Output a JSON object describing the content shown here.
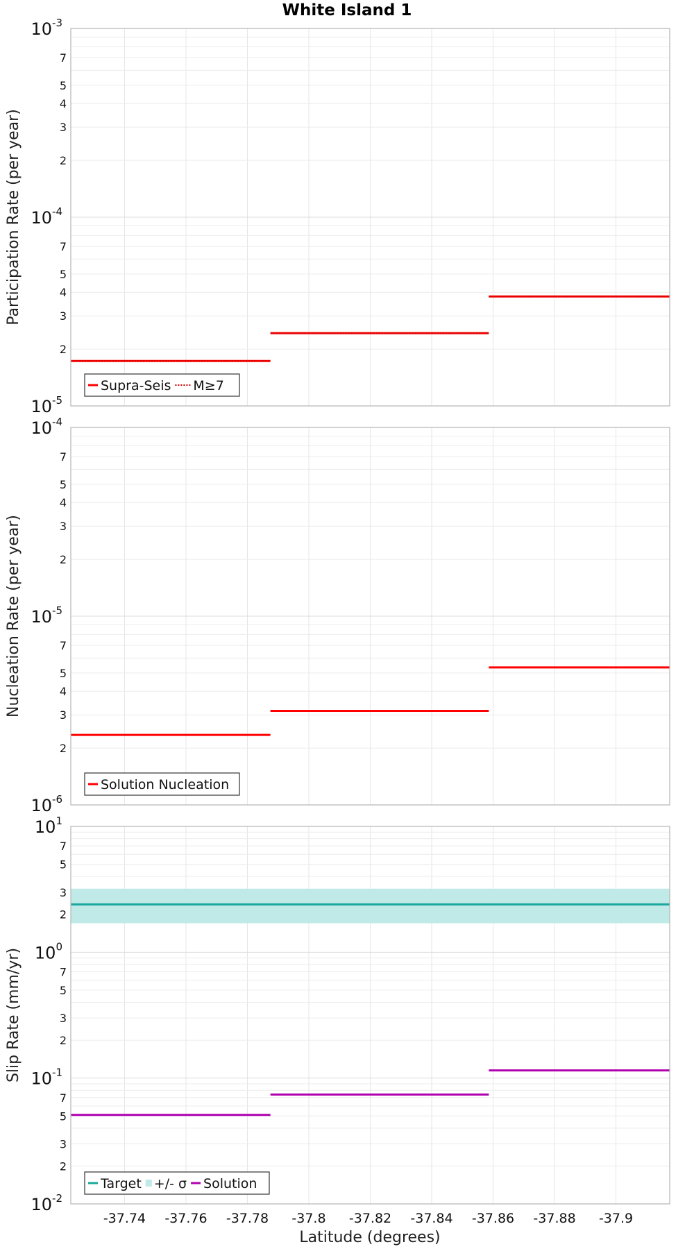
{
  "title": "White Island 1",
  "xlabel": "Latitude (degrees)",
  "x_ticks": [
    "-37.74",
    "-37.76",
    "-37.78",
    "-37.8",
    "-37.82",
    "-37.84",
    "-37.86",
    "-37.88",
    "-37.9"
  ],
  "chart_data": [
    {
      "type": "line",
      "title": "White Island 1",
      "ylabel": "Participation Rate (per year)",
      "xlabel": "Latitude (degrees)",
      "xlim": [
        -37.7225,
        -37.9175
      ],
      "x_reversed": true,
      "yscale": "log",
      "ylim": [
        1e-05,
        0.001
      ],
      "decade_labels": [
        {
          "base": "10",
          "exp": "-3"
        },
        {
          "base": "10",
          "exp": "-4"
        },
        {
          "base": "10",
          "exp": "-5"
        }
      ],
      "minor_labels": [
        "7",
        "5",
        "4",
        "3",
        "2"
      ],
      "legend": [
        "Supra-Seis",
        "M≥7"
      ],
      "legend_position": "bottom-left",
      "series": [
        {
          "name": "Supra-Seis",
          "color": "#ff0000",
          "style": "solid",
          "segments": [
            {
              "x": [
                -37.7225,
                -37.7875
              ],
              "y": 1.73e-05
            },
            {
              "x": [
                -37.7875,
                -37.8586
              ],
              "y": 2.43e-05
            },
            {
              "x": [
                -37.8586,
                -37.9175
              ],
              "y": 3.8e-05
            }
          ]
        },
        {
          "name": "M≥7",
          "color": "#cc0000",
          "style": "dotted",
          "segments": [
            {
              "x": [
                -37.7225,
                -37.7875
              ],
              "y": 1.73e-05
            },
            {
              "x": [
                -37.7875,
                -37.8586
              ],
              "y": 2.43e-05
            },
            {
              "x": [
                -37.8586,
                -37.9175
              ],
              "y": 3.8e-05
            }
          ]
        }
      ]
    },
    {
      "type": "line",
      "ylabel": "Nucleation Rate (per year)",
      "xlim": [
        -37.7225,
        -37.9175
      ],
      "x_reversed": true,
      "yscale": "log",
      "ylim": [
        1e-06,
        0.0001
      ],
      "decade_labels": [
        {
          "base": "10",
          "exp": "-4"
        },
        {
          "base": "10",
          "exp": "-5"
        },
        {
          "base": "10",
          "exp": "-6"
        }
      ],
      "minor_labels": [
        "7",
        "5",
        "4",
        "3",
        "2"
      ],
      "legend": [
        "Solution Nucleation"
      ],
      "legend_position": "bottom-left",
      "series": [
        {
          "name": "Solution Nucleation",
          "color": "#ff0000",
          "style": "solid",
          "segments": [
            {
              "x": [
                -37.7225,
                -37.7875
              ],
              "y": 2.35e-06
            },
            {
              "x": [
                -37.7875,
                -37.8586
              ],
              "y": 3.15e-06
            },
            {
              "x": [
                -37.8586,
                -37.9175
              ],
              "y": 5.35e-06
            }
          ]
        }
      ]
    },
    {
      "type": "line",
      "ylabel": "Slip Rate (mm/yr)",
      "xlim": [
        -37.7225,
        -37.9175
      ],
      "x_reversed": true,
      "yscale": "log",
      "ylim": [
        0.01,
        10
      ],
      "decade_labels": [
        {
          "base": "10",
          "exp": "1"
        },
        {
          "base": "10",
          "exp": "0"
        },
        {
          "base": "10",
          "exp": "-1"
        },
        {
          "base": "10",
          "exp": "-2"
        }
      ],
      "minor_labels": [
        "7",
        "5",
        "3",
        "2"
      ],
      "legend": [
        "Target",
        "+/- σ",
        "Solution"
      ],
      "legend_position": "bottom-left",
      "series": [
        {
          "name": "Target",
          "color": "#1aa89c",
          "style": "solid",
          "segments": [
            {
              "x": [
                -37.7225,
                -37.9175
              ],
              "y": 2.4
            }
          ]
        },
        {
          "name": "+/- σ",
          "color": "#bfeae7",
          "style": "band",
          "segments": [
            {
              "x": [
                -37.7225,
                -37.9175
              ],
              "y_low": 1.7,
              "y_high": 3.2
            }
          ]
        },
        {
          "name": "Solution",
          "color": "#b000b0",
          "style": "solid",
          "segments": [
            {
              "x": [
                -37.7225,
                -37.7875
              ],
              "y": 0.051
            },
            {
              "x": [
                -37.7875,
                -37.8586
              ],
              "y": 0.074
            },
            {
              "x": [
                -37.8586,
                -37.9175
              ],
              "y": 0.115
            }
          ]
        }
      ]
    }
  ]
}
